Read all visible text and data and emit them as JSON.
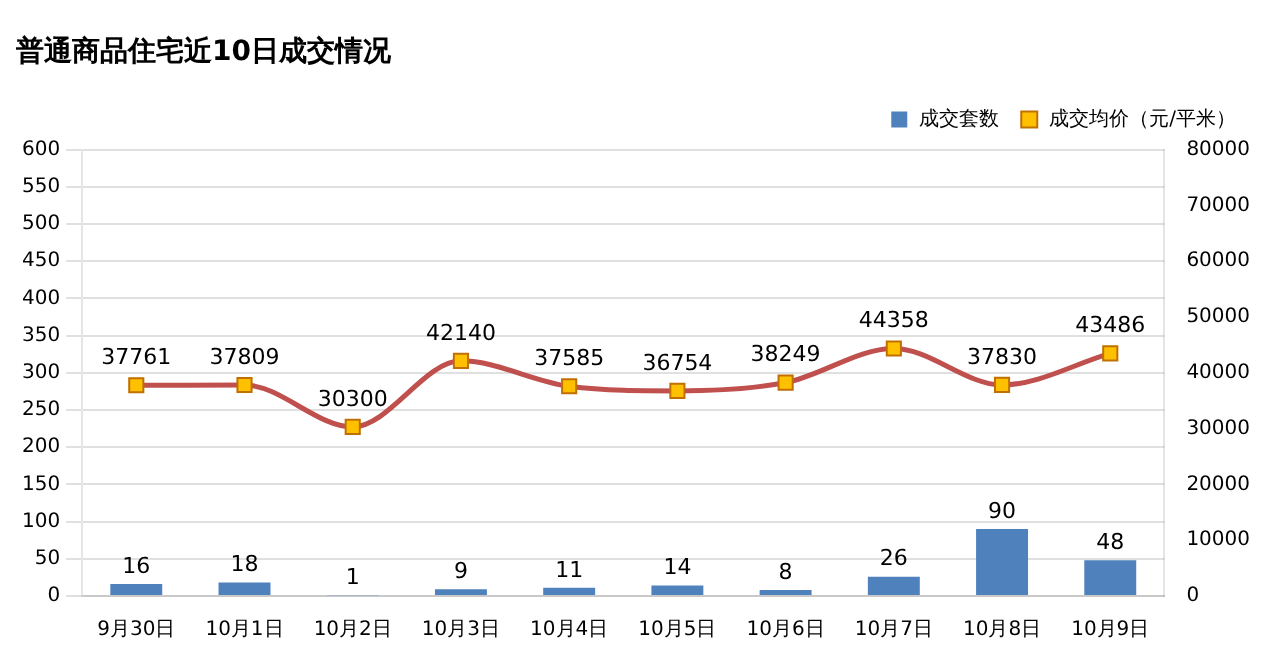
{
  "chart_data": {
    "type": "bar",
    "title": "普通商品住宅近10日成交情况",
    "categories": [
      "9月30日",
      "10月1日",
      "10月2日",
      "10月3日",
      "10月4日",
      "10月5日",
      "10月6日",
      "10月7日",
      "10月8日",
      "10月9日"
    ],
    "series": [
      {
        "name": "成交套数",
        "color": "#4f81bd",
        "values": [
          16,
          18,
          1,
          9,
          11,
          14,
          8,
          26,
          90,
          48
        ]
      },
      {
        "name": "成交均价（元/平米）",
        "type": "line",
        "axis": "y2",
        "color": "#c0504d",
        "values": [
          37761,
          37809,
          30300,
          42140,
          37585,
          36754,
          38249,
          44358,
          37830,
          43486
        ]
      }
    ],
    "ylim": [
      0,
      600
    ],
    "yticks": [
      0,
      50,
      100,
      150,
      200,
      250,
      300,
      350,
      400,
      450,
      500,
      550,
      600
    ],
    "y2lim": [
      0,
      80000
    ],
    "y2ticks": [
      0,
      10000,
      20000,
      30000,
      40000,
      50000,
      60000,
      70000,
      80000
    ],
    "grid": "y",
    "legend": "top right",
    "marker": "square",
    "line_style": "solid",
    "data_labels": true
  }
}
